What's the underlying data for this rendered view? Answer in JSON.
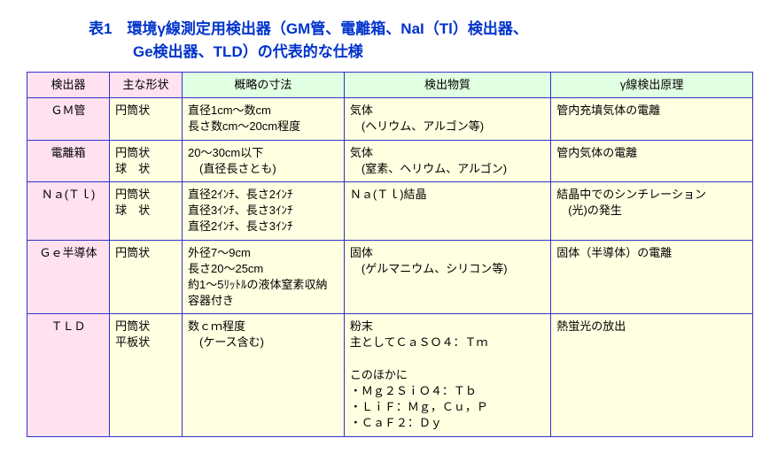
{
  "title_line1": "表1　環境γ線測定用検出器（GM管、電離箱、NaI（Tl）検出器、",
  "title_line2": "Ge検出器、TLD）の代表的な仕様",
  "headers": {
    "c1": "検出器",
    "c2": "主な形状",
    "c3": "概略の寸法",
    "c4": "検出物質",
    "c5": "γ線検出原理"
  },
  "rows": [
    {
      "detector": "ＧＭ管",
      "shape": "円筒状",
      "dimensions": "直径1cm～数cm\n長さ数cm～20cm程度",
      "substance": "気体\n　(ヘリウム、アルゴン等)",
      "principle": "管内充填気体の電離"
    },
    {
      "detector": "電離箱",
      "shape": "円筒状\n球　状",
      "dimensions": "20～30cm以下\n　(直径長さとも)",
      "substance": "気体\n　(窒素、ヘリウム、アルゴン)",
      "principle": "管内気体の電離"
    },
    {
      "detector": "Ｎａ(Ｔｌ)",
      "shape": "円筒状\n球　状",
      "dimensions": "直径2ｲﾝﾁ、長さ2ｲﾝﾁ\n直径3ｲﾝﾁ、長さ3ｲﾝﾁ\n直径2ｲﾝﾁ、長さ3ｲﾝﾁ",
      "substance": "Ｎａ(Ｔｌ)結晶",
      "principle": "結晶中でのシンチレーション\n　(光)の発生"
    },
    {
      "detector": "Ｇｅ半導体",
      "shape": "円筒状",
      "dimensions": "外径7～9cm\n長さ20～25cm\n約1～5ﾘｯﾄﾙの液体窒素収納容器付き",
      "substance": "固体\n　(ゲルマニウム、シリコン等)",
      "principle": "固体（半導体）の電離"
    },
    {
      "detector": "ＴＬＤ",
      "shape": "円筒状\n平板状",
      "dimensions": "数ｃｍ程度\n　(ケース含む)",
      "substance": "粉末\n主としてＣａＳＯ４：Ｔｍ\n\nこのほかに\n・Ｍｇ２ＳｉＯ４：Ｔｂ\n・ＬｉＦ：Ｍｇ，Ｃｕ，Ｐ\n・ＣａＦ２：Ｄｙ",
      "principle": "熱蛍光の放出"
    }
  ],
  "colors": {
    "border": "#3333cc",
    "title_text": "#0033cc",
    "pink_bg": "#ffe1f0",
    "green_bg": "#e1ffe1",
    "cream_bg": "#ffffe1"
  }
}
